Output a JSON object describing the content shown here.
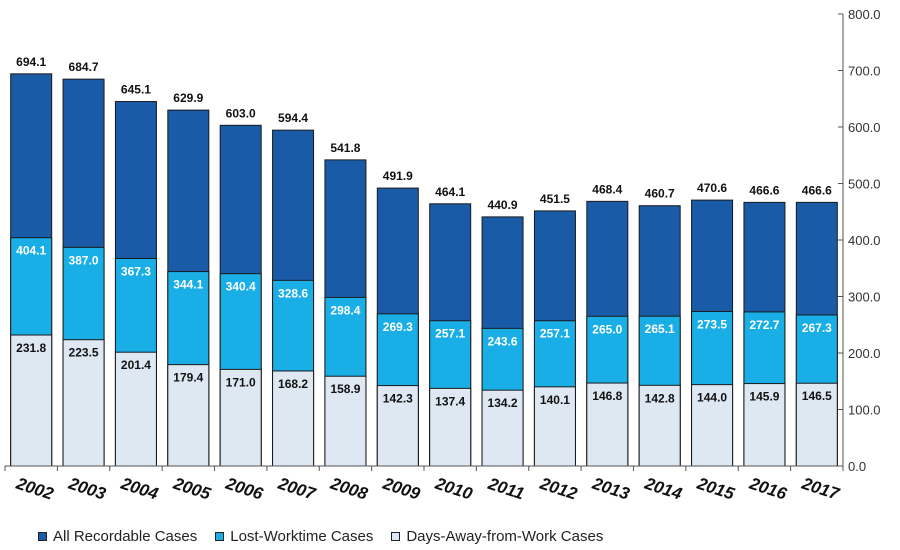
{
  "chart_data": {
    "type": "bar",
    "categories": [
      "2002",
      "2003",
      "2004",
      "2005",
      "2006",
      "2007",
      "2008",
      "2009",
      "2010",
      "2011",
      "2012",
      "2013",
      "2014",
      "2015",
      "2016",
      "2017"
    ],
    "series": [
      {
        "name": "All Recordable Cases",
        "color": "#1a5ba8",
        "label_color": "#111111",
        "values": [
          694.1,
          684.7,
          645.1,
          629.9,
          603.0,
          594.4,
          541.8,
          491.9,
          464.1,
          440.9,
          451.5,
          468.4,
          460.7,
          470.6,
          466.6,
          466.6
        ]
      },
      {
        "name": "Lost-Worktime Cases",
        "color": "#19aee6",
        "label_color": "#ffffff",
        "values": [
          404.1,
          387.0,
          367.3,
          344.1,
          340.4,
          328.6,
          298.4,
          269.3,
          257.1,
          243.6,
          257.1,
          265.0,
          265.1,
          273.5,
          272.7,
          267.3
        ]
      },
      {
        "name": "Days-Away-from-Work Cases",
        "color": "#dde8f3",
        "label_color": "#111111",
        "values": [
          231.8,
          223.5,
          201.4,
          179.4,
          171.0,
          168.2,
          158.9,
          142.3,
          137.4,
          134.2,
          140.1,
          146.8,
          142.8,
          144.0,
          145.9,
          146.5
        ]
      }
    ],
    "value_labels": {
      "all": [
        "694.1",
        "684.7",
        "645.1",
        "629.9",
        "603.0",
        "594.4",
        "541.8",
        "491.9",
        "464.1",
        "440.9",
        "451.5",
        "468.4",
        "460.7",
        "470.6",
        "466.6",
        "466.6"
      ],
      "lost": [
        "404.1",
        "387.0",
        "367.3",
        "344.1",
        "340.4",
        "328.6",
        "298.4",
        "269.3",
        "257.1",
        "243.6",
        "257.1",
        "265.0",
        "265.1",
        "273.5",
        "272.7",
        "267.3"
      ],
      "away": [
        "231.8",
        "223.5",
        "201.4",
        "179.4",
        "171.0",
        "168.2",
        "158.9",
        "142.3",
        "137.4",
        "134.2",
        "140.1",
        "146.8",
        "142.8",
        "144.0",
        "145.9",
        "146.5"
      ]
    },
    "ylim": [
      0,
      800
    ],
    "yticks": [
      "0.0",
      "100.0",
      "200.0",
      "300.0",
      "400.0",
      "500.0",
      "600.0",
      "700.0",
      "800.0"
    ],
    "ytick_values": [
      0,
      100,
      200,
      300,
      400,
      500,
      600,
      700,
      800
    ],
    "y_axis_side": "right",
    "grid": false,
    "legend_position": "bottom"
  }
}
